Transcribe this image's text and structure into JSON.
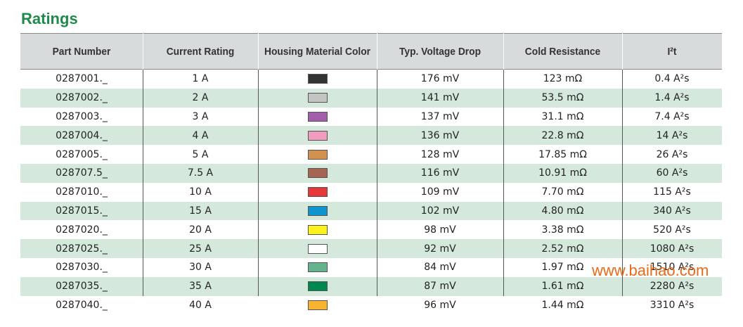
{
  "header": {
    "title": "Ratings"
  },
  "table": {
    "headers": [
      "Part Number",
      "Current Rating",
      "Housing Material Color",
      "Typ. Voltage Drop",
      "Cold Resistance",
      "I²t"
    ],
    "rows": [
      {
        "part_number": "0287001._",
        "current_rating": "1 A",
        "housing_color": "#333333",
        "voltage_drop": "176 mV",
        "cold_resistance": "123 mΩ",
        "i2t": "0.4 A²s"
      },
      {
        "part_number": "0287002._",
        "current_rating": "2 A",
        "housing_color": "#c3c3c3",
        "voltage_drop": "141 mV",
        "cold_resistance": "53.5 mΩ",
        "i2t": "1.4 A²s"
      },
      {
        "part_number": "0287003._",
        "current_rating": "3 A",
        "housing_color": "#a25ea9",
        "voltage_drop": "137 mV",
        "cold_resistance": "31.1 mΩ",
        "i2t": "7.4 A²s"
      },
      {
        "part_number": "0287004._",
        "current_rating": "4 A",
        "housing_color": "#f09cbf",
        "voltage_drop": "136 mV",
        "cold_resistance": "22.8 mΩ",
        "i2t": "14 A²s"
      },
      {
        "part_number": "0287005._",
        "current_rating": "5 A",
        "housing_color": "#d1914f",
        "voltage_drop": "128 mV",
        "cold_resistance": "17.85 mΩ",
        "i2t": "26 A²s"
      },
      {
        "part_number": "028707.5_",
        "current_rating": "7.5 A",
        "housing_color": "#a66552",
        "voltage_drop": "116 mV",
        "cold_resistance": "10.91 mΩ",
        "i2t": "60 A²s"
      },
      {
        "part_number": "0287010._",
        "current_rating": "10 A",
        "housing_color": "#e8373a",
        "voltage_drop": "109 mV",
        "cold_resistance": "7.70 mΩ",
        "i2t": "115 A²s"
      },
      {
        "part_number": "0287015._",
        "current_rating": "15 A",
        "housing_color": "#0e94cf",
        "voltage_drop": "102 mV",
        "cold_resistance": "4.80 mΩ",
        "i2t": "340 A²s"
      },
      {
        "part_number": "0287020._",
        "current_rating": "20 A",
        "housing_color": "#fff21c",
        "voltage_drop": "98 mV",
        "cold_resistance": "3.38 mΩ",
        "i2t": "520 A²s"
      },
      {
        "part_number": "0287025._",
        "current_rating": "25 A",
        "housing_color": "#ffffff",
        "voltage_drop": "92 mV",
        "cold_resistance": "2.52 mΩ",
        "i2t": "1080 A²s"
      },
      {
        "part_number": "0287030._",
        "current_rating": "30 A",
        "housing_color": "#65b38e",
        "voltage_drop": "84 mV",
        "cold_resistance": "1.97 mΩ",
        "i2t": "1510 A²s"
      },
      {
        "part_number": "0287035._",
        "current_rating": "35 A",
        "housing_color": "#00864f",
        "voltage_drop": "87 mV",
        "cold_resistance": "1.61 mΩ",
        "i2t": "2280 A²s"
      },
      {
        "part_number": "0287040._",
        "current_rating": "40 A",
        "housing_color": "#f8b330",
        "voltage_drop": "96 mV",
        "cold_resistance": "1.44 mΩ",
        "i2t": "3310 A²s"
      }
    ]
  },
  "watermark": "www.baihao.com"
}
